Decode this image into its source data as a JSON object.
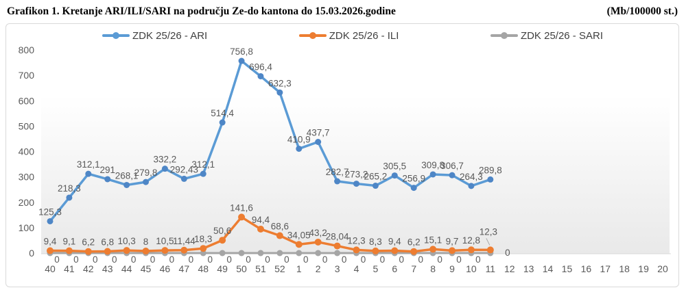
{
  "header": {
    "title": "Grafikon 1. Kretanje ARI/ILI/SARI na području Ze-do kantona do 15.03.2026.godine",
    "unit": "(Mb/100000 st.)"
  },
  "legend": {
    "position": "top",
    "items": [
      {
        "label": "ZDK 25/26 - ARI",
        "color": "#5B9BD5"
      },
      {
        "label": "ZDK 25/26 - ILI",
        "color": "#ED7D31"
      },
      {
        "label": "ZDK 25/26 - SARI",
        "color": "#A5A5A5"
      }
    ]
  },
  "chart_data": {
    "type": "line",
    "title": "Grafikon 1. Kretanje ARI/ILI/SARI na području Ze-do kantona do 15.03.2026.godine",
    "unit_label": "(Mb/100000 st.)",
    "xlabel": "",
    "ylabel": "",
    "ylim": [
      0,
      800
    ],
    "yticks": [
      0,
      100,
      200,
      300,
      400,
      500,
      600,
      700,
      800
    ],
    "grid": false,
    "legend_position": "top",
    "categories": [
      "40",
      "41",
      "42",
      "43",
      "44",
      "45",
      "46",
      "47",
      "48",
      "49",
      "50",
      "51",
      "52",
      "1",
      "2",
      "3",
      "4",
      "5",
      "6",
      "7",
      "8",
      "9",
      "10",
      "11",
      "12",
      "13",
      "14",
      "15",
      "16",
      "17",
      "18",
      "19",
      "20"
    ],
    "series": [
      {
        "name": "ZDK 25/26 - ARI",
        "color": "#5B9BD5",
        "marker_color": "#4E86C6",
        "values": [
          125.3,
          218.3,
          312.1,
          291,
          268.1,
          279.8,
          332.2,
          292.43,
          312.1,
          514.4,
          756.8,
          696.4,
          632.3,
          410.9,
          437.7,
          282.7,
          273.2,
          265.2,
          305.5,
          256.9,
          309.8,
          306.7,
          264.3,
          289.8
        ],
        "labels": [
          "125,3",
          "218,3",
          "312,1",
          "291",
          "268,1",
          "279,8",
          "332,2",
          "292,43",
          "312,1",
          "514,4",
          "756,8",
          "696,4",
          "632,3",
          "410,9",
          "437,7",
          "282,7",
          "273,2",
          "265,2",
          "305,5",
          "256,9",
          "309,8",
          "306,7",
          "264,3",
          "289,8"
        ]
      },
      {
        "name": "ZDK 25/26 - ILI",
        "color": "#ED7D31",
        "marker_color": "#ED7D31",
        "values": [
          9.4,
          9.1,
          6.2,
          6.8,
          10.3,
          8,
          10.5,
          11.44,
          18.3,
          50.6,
          141.6,
          94.4,
          68.6,
          34.05,
          43.2,
          28.04,
          12.3,
          8.3,
          9.4,
          6.2,
          15.1,
          9.7,
          12.8,
          12.3
        ],
        "labels": [
          "9,4",
          "9,1",
          "6,2",
          "6,8",
          "10,3",
          "8",
          "10,5",
          "11,44",
          "18,3",
          "50,6",
          "141,6",
          "94,4",
          "68,6",
          "34,05",
          "43,2",
          "28,04",
          "12,3",
          "8,3",
          "9,4",
          "6,2",
          "15,1",
          "9,7",
          "12,8",
          "12,3"
        ]
      },
      {
        "name": "ZDK 25/26 - SARI",
        "color": "#A5A5A5",
        "marker_color": "#A5A5A5",
        "values": [
          0,
          0,
          0,
          0,
          0,
          0,
          0,
          0,
          0,
          0,
          0,
          0,
          0,
          0,
          0,
          0,
          0,
          0,
          0,
          0,
          0,
          0,
          0,
          0
        ],
        "labels": [
          "0",
          "0",
          "0",
          "0",
          "0",
          "0",
          "0",
          "0",
          "0",
          "0",
          "0",
          "0",
          "0",
          "0",
          "0",
          "0",
          "0",
          "0",
          "0",
          "0",
          "0",
          "0",
          "0",
          "0"
        ]
      }
    ],
    "colors": {
      "axis_text": "#595959",
      "data_label_text": "#595959",
      "axis_line": "#d9d9d9",
      "plot_band_bottom": "#e9e9e9"
    }
  }
}
